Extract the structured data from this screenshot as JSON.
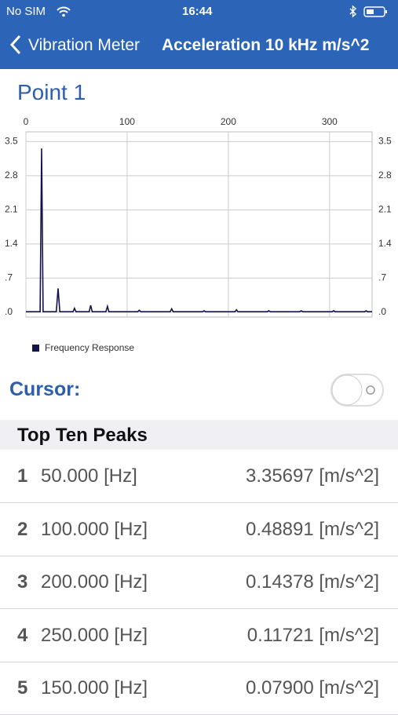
{
  "status_bar": {
    "carrier": "No SIM",
    "time": "16:44"
  },
  "nav": {
    "back": "Vibration Meter",
    "title": "Acceleration 10 kHz m/s^2"
  },
  "chart_data": {
    "type": "line",
    "title": "Point 1",
    "x": [
      0,
      14,
      15.5,
      17,
      30,
      31.8,
      33.5,
      46.5,
      48,
      49.5,
      62.5,
      64,
      65.5,
      79,
      80.6,
      82,
      110.5,
      112,
      113.5,
      142.5,
      144,
      145.5,
      174.5,
      176,
      177.5,
      206.5,
      208,
      209.5,
      238.5,
      240,
      241.5,
      270.5,
      272,
      273.5,
      302.5,
      304,
      305.5,
      334.5,
      336,
      337.5,
      342
    ],
    "series": [
      {
        "name": "Frequency Response",
        "color": "#14144a",
        "values": [
          0.01,
          0.01,
          3.36,
          0.01,
          0.01,
          0.49,
          0.01,
          0.01,
          0.08,
          0.01,
          0.01,
          0.14,
          0.01,
          0.01,
          0.12,
          0.01,
          0.01,
          0.04,
          0.01,
          0.01,
          0.07,
          0.01,
          0.01,
          0.03,
          0.01,
          0.01,
          0.05,
          0.01,
          0.01,
          0.03,
          0.01,
          0.01,
          0.03,
          0.01,
          0.01,
          0.03,
          0.01,
          0.01,
          0.03,
          0.01,
          0.01
        ]
      }
    ],
    "xlim": [
      0,
      342
    ],
    "xticks": [
      0,
      100,
      200,
      300
    ],
    "ylim": [
      -0.1,
      3.7
    ],
    "yticks": [
      {
        "value": 0,
        "label": ".0"
      },
      {
        "value": 0.7,
        "label": ".7"
      },
      1.4,
      2.1,
      2.8,
      3.5
    ],
    "grid": true
  },
  "cursor": {
    "label": "Cursor:"
  },
  "peaks": {
    "title": "Top Ten Peaks",
    "rows": [
      [
        "1",
        "50.000 [Hz]",
        "3.35697 [m/s^2]"
      ],
      [
        "2",
        "100.000 [Hz]",
        "0.48891 [m/s^2]"
      ],
      [
        "3",
        "200.000 [Hz]",
        "0.14378 [m/s^2]"
      ],
      [
        "4",
        "250.000 [Hz]",
        "0.11721 [m/s^2]"
      ],
      [
        "5",
        "150.000 [Hz]",
        "0.07900 [m/s^2]"
      ]
    ]
  }
}
